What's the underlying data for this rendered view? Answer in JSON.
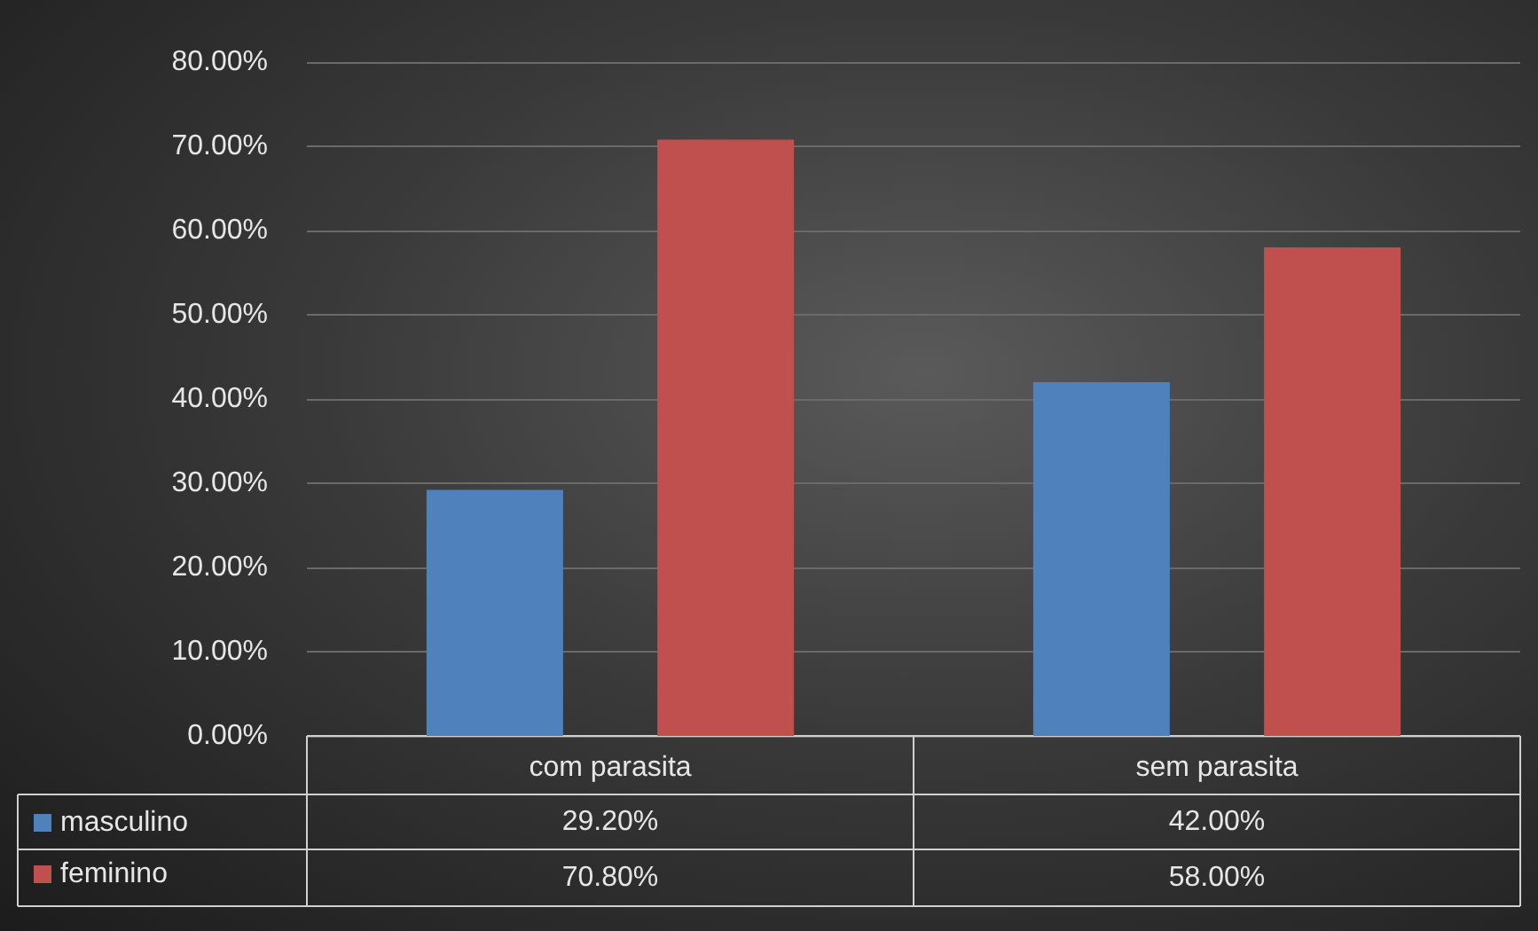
{
  "chart_data": {
    "type": "bar",
    "categories": [
      "com parasita",
      "sem parasita"
    ],
    "series": [
      {
        "name": "masculino",
        "color": "#4f81bd",
        "values": [
          29.2,
          42.0
        ],
        "value_labels": [
          "29.20%",
          "42.00%"
        ]
      },
      {
        "name": "feminino",
        "color": "#c0504d",
        "values": [
          70.8,
          58.0
        ],
        "value_labels": [
          "70.80%",
          "58.00%"
        ]
      }
    ],
    "ylim": [
      0,
      80
    ],
    "yticks": [
      {
        "value": 0,
        "label": "0.00%"
      },
      {
        "value": 10,
        "label": "10.00%"
      },
      {
        "value": 20,
        "label": "20.00%"
      },
      {
        "value": 30,
        "label": "30.00%"
      },
      {
        "value": 40,
        "label": "40.00%"
      },
      {
        "value": 50,
        "label": "50.00%"
      },
      {
        "value": 60,
        "label": "60.00%"
      },
      {
        "value": 70,
        "label": "70.00%"
      },
      {
        "value": 80,
        "label": "80.00%"
      }
    ],
    "grid": "y",
    "legend": "bottom left"
  }
}
